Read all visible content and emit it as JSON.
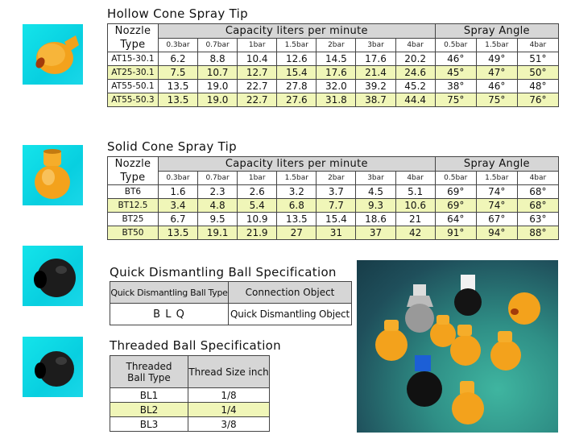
{
  "hollow": {
    "title": "Hollow Cone Spray Tip",
    "nozzle_line1": "Nozzle",
    "nozzle_line2": "Type",
    "capacity_header": "Capacity  liters per minute",
    "angle_header": "Spray Angle",
    "capacity_cols": [
      "0.3bar",
      "0.7bar",
      "1bar",
      "1.5bar",
      "2bar",
      "3bar",
      "4bar"
    ],
    "angle_cols": [
      "0.5bar",
      "1.5bar",
      "4bar"
    ],
    "rows": [
      {
        "type": "AT15-30.1",
        "cap": [
          "6.2",
          "8.8",
          "10.4",
          "12.6",
          "14.5",
          "17.6",
          "20.2"
        ],
        "ang": [
          "46°",
          "49°",
          "51°"
        ]
      },
      {
        "type": "AT25-30.1",
        "cap": [
          "7.5",
          "10.7",
          "12.7",
          "15.4",
          "17.6",
          "21.4",
          "24.6"
        ],
        "ang": [
          "45°",
          "47°",
          "50°"
        ]
      },
      {
        "type": "AT55-50.1",
        "cap": [
          "13.5",
          "19.0",
          "22.7",
          "27.8",
          "32.0",
          "39.2",
          "45.2"
        ],
        "ang": [
          "38°",
          "46°",
          "48°"
        ]
      },
      {
        "type": "AT55-50.3",
        "cap": [
          "13.5",
          "19.0",
          "22.7",
          "27.6",
          "31.8",
          "38.7",
          "44.4"
        ],
        "ang": [
          "75°",
          "75°",
          "76°"
        ]
      }
    ]
  },
  "solid": {
    "title": "Solid Cone Spray Tip",
    "nozzle_line1": "Nozzle",
    "nozzle_line2": "Type",
    "capacity_header": "Capacity  liters per minute",
    "angle_header": "Spray Angle",
    "capacity_cols": [
      "0.3bar",
      "0.7bar",
      "1bar",
      "1.5bar",
      "2bar",
      "3bar",
      "4bar"
    ],
    "angle_cols": [
      "0.5bar",
      "1.5bar",
      "4bar"
    ],
    "rows": [
      {
        "type": "BT6",
        "cap": [
          "1.6",
          "2.3",
          "2.6",
          "3.2",
          "3.7",
          "4.5",
          "5.1"
        ],
        "ang": [
          "69°",
          "74°",
          "68°"
        ]
      },
      {
        "type": "BT12.5",
        "cap": [
          "3.4",
          "4.8",
          "5.4",
          "6.8",
          "7.7",
          "9.3",
          "10.6"
        ],
        "ang": [
          "69°",
          "74°",
          "68°"
        ]
      },
      {
        "type": "BT25",
        "cap": [
          "6.7",
          "9.5",
          "10.9",
          "13.5",
          "15.4",
          "18.6",
          "21"
        ],
        "ang": [
          "64°",
          "67°",
          "63°"
        ]
      },
      {
        "type": "BT50",
        "cap": [
          "13.5",
          "19.1",
          "21.9",
          "27",
          "31",
          "37",
          "42"
        ],
        "ang": [
          "91°",
          "94°",
          "88°"
        ]
      }
    ]
  },
  "quick": {
    "title": "Quick Dismantling Ball Specification",
    "col1": "Quick Dismantling Ball Type",
    "col2": "Connection Object",
    "type": "B L Q",
    "object": "Quick Dismantling Object"
  },
  "threaded": {
    "title": "Threaded Ball Specification",
    "col1_line1": "Threaded",
    "col1_line2": "Ball Type",
    "col2": "Thread Size  inch",
    "rows": [
      {
        "type": "BL1",
        "size": "1/8"
      },
      {
        "type": "BL2",
        "size": "1/4"
      },
      {
        "type": "BL3",
        "size": "3/8"
      }
    ]
  },
  "colors": {
    "highlight_row": "#f0f6b8",
    "header_gray": "#d6d6d6",
    "thumb_bg": "#14e4ea",
    "nozzle_orange": "#f5a623",
    "ball_black": "#1a1a1a"
  }
}
